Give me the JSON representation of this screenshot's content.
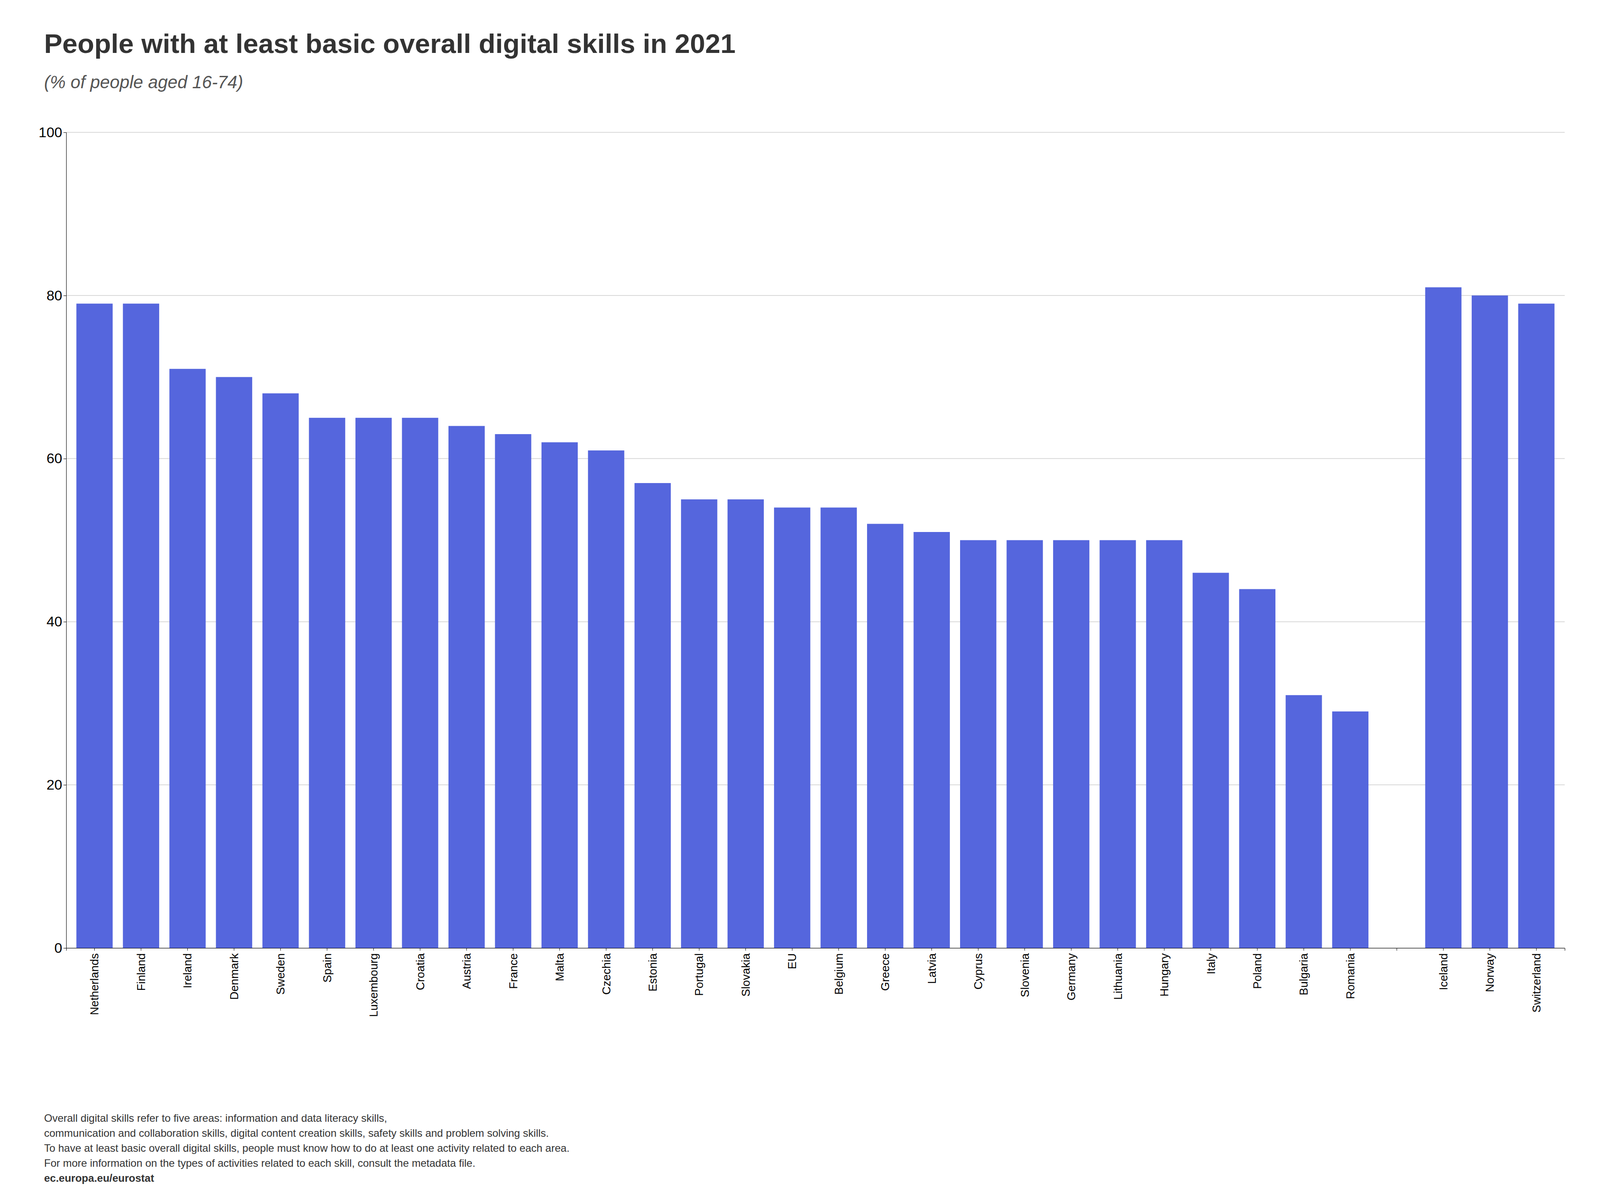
{
  "chart_data": {
    "type": "bar",
    "title": "People with at least basic overall digital skills  in 2021",
    "subtitle": "(% of people aged 16-74)",
    "categories": [
      "Netherlands",
      "Finland",
      "Ireland",
      "Denmark",
      "Sweden",
      "Spain",
      "Luxembourg",
      "Croatia",
      "Austria",
      "France",
      "Malta",
      "Czechia",
      "Estonia",
      "Portugal",
      "Slovakia",
      "EU",
      "Belgium",
      "Greece",
      "Latvia",
      "Cyprus",
      "Slovenia",
      "Germany",
      "Lithuania",
      "Hungary",
      "Italy",
      "Poland",
      "Bulgaria",
      "Romania",
      null,
      "Iceland",
      "Norway",
      "Switzerland"
    ],
    "values": [
      79,
      79,
      71,
      70,
      68,
      65,
      65,
      65,
      64,
      63,
      62,
      61,
      57,
      55,
      55,
      54,
      54,
      52,
      51,
      50,
      50,
      50,
      50,
      50,
      46,
      44,
      31,
      29,
      0,
      81,
      80,
      79
    ],
    "color": "#5566dd",
    "ylim": [
      0,
      100
    ],
    "yticks": [
      0,
      20,
      40,
      60,
      80,
      100
    ],
    "grid": true,
    "annotations": [
      "Overall digital skills refer to five areas: information and data literacy skills,",
      "communication and collaboration skills, digital content creation skills, safety skills and problem solving skills.",
      "To have at least basic overall digital skills, people must know how to do at least one activity related to each area.",
      "For more information on the types of activities related to each skill, consult the metadata file.",
      "ec.europa.eu/eurostat"
    ]
  }
}
